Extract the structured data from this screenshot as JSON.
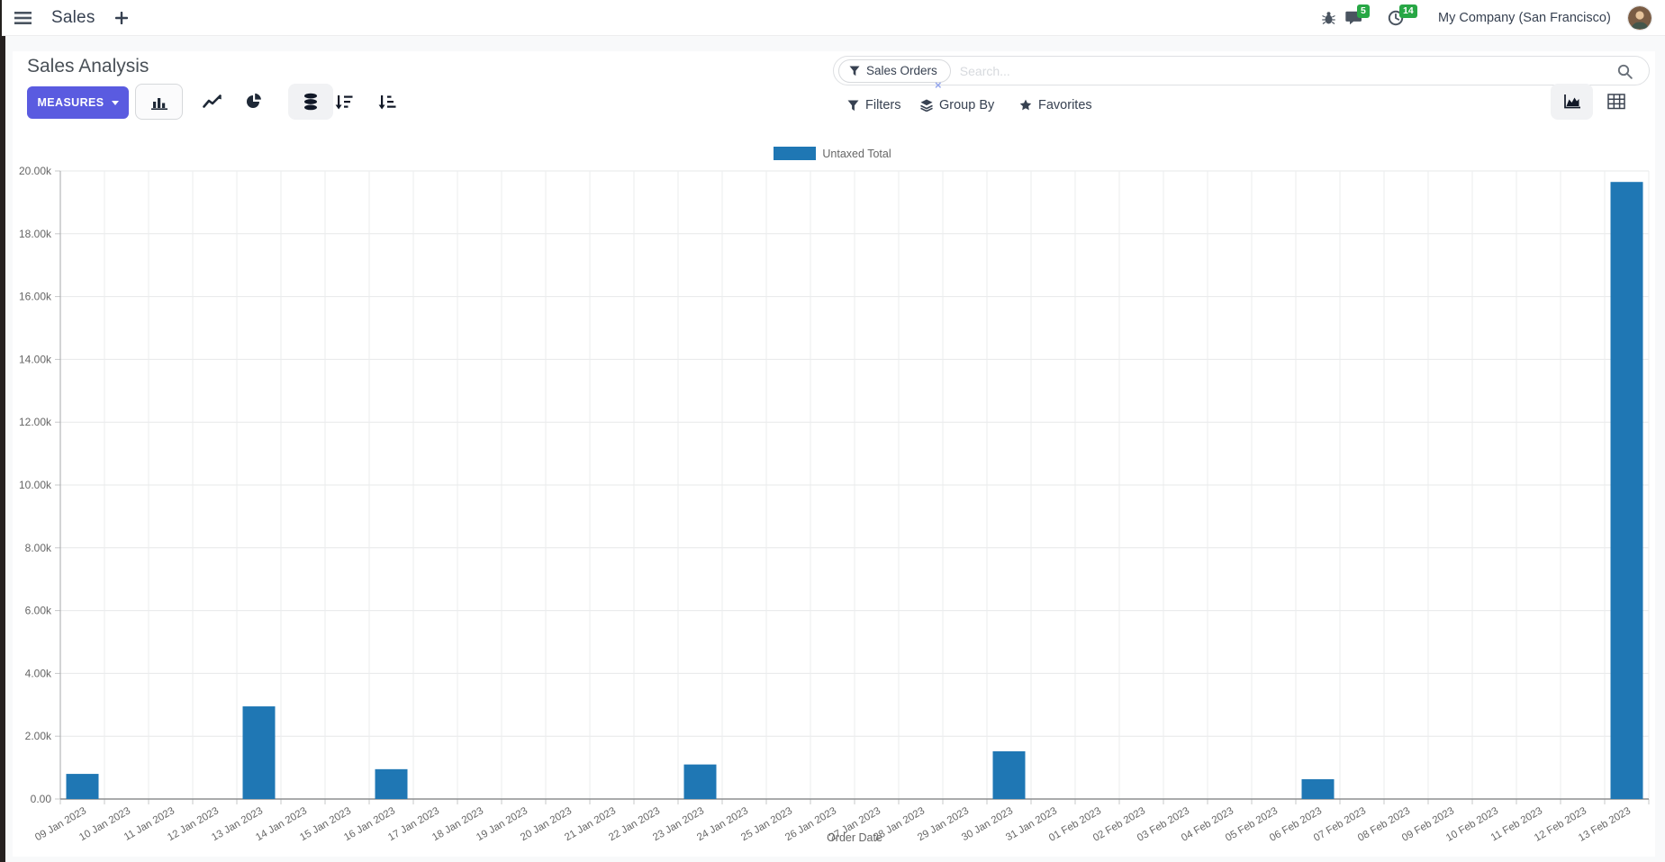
{
  "navbar": {
    "app_name": "Sales",
    "messages_badge": "5",
    "activities_badge": "14",
    "company": "My Company (San Francisco)"
  },
  "control_panel": {
    "title": "Sales Analysis",
    "measures_label": "MEASURES",
    "search": {
      "facet_label": "Sales Orders",
      "placeholder": "Search...",
      "facet_remove": "×"
    },
    "filters_label": "Filters",
    "group_by_label": "Group By",
    "favorites_label": "Favorites"
  },
  "chart_data": {
    "type": "bar",
    "title": "",
    "legend": "Untaxed Total",
    "legend_position": "top",
    "series_color": "#1f77b4",
    "xlabel": "Order Date",
    "ylabel": "",
    "ylim": [
      0,
      20000
    ],
    "ytick_step": 2000,
    "ytick_labels": [
      "0.00",
      "2.00k",
      "4.00k",
      "6.00k",
      "8.00k",
      "10.00k",
      "12.00k",
      "14.00k",
      "16.00k",
      "18.00k",
      "20.00k"
    ],
    "grid": true,
    "categories": [
      "09 Jan 2023",
      "10 Jan 2023",
      "11 Jan 2023",
      "12 Jan 2023",
      "13 Jan 2023",
      "14 Jan 2023",
      "15 Jan 2023",
      "16 Jan 2023",
      "17 Jan 2023",
      "18 Jan 2023",
      "19 Jan 2023",
      "20 Jan 2023",
      "21 Jan 2023",
      "22 Jan 2023",
      "23 Jan 2023",
      "24 Jan 2023",
      "25 Jan 2023",
      "26 Jan 2023",
      "27 Jan 2023",
      "28 Jan 2023",
      "29 Jan 2023",
      "30 Jan 2023",
      "31 Jan 2023",
      "01 Feb 2023",
      "02 Feb 2023",
      "03 Feb 2023",
      "04 Feb 2023",
      "05 Feb 2023",
      "06 Feb 2023",
      "07 Feb 2023",
      "08 Feb 2023",
      "09 Feb 2023",
      "10 Feb 2023",
      "11 Feb 2023",
      "12 Feb 2023",
      "13 Feb 2023"
    ],
    "values": [
      800,
      0,
      0,
      0,
      2950,
      0,
      0,
      950,
      0,
      0,
      0,
      0,
      0,
      0,
      1100,
      0,
      0,
      0,
      0,
      0,
      0,
      1520,
      0,
      0,
      0,
      0,
      0,
      0,
      630,
      0,
      0,
      0,
      0,
      0,
      0,
      19650
    ]
  }
}
